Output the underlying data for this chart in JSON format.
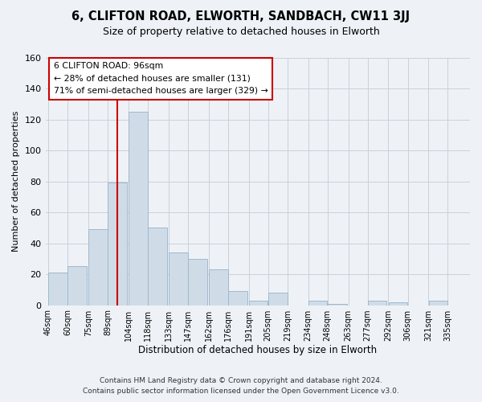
{
  "title": "6, CLIFTON ROAD, ELWORTH, SANDBACH, CW11 3JJ",
  "subtitle": "Size of property relative to detached houses in Elworth",
  "xlabel": "Distribution of detached houses by size in Elworth",
  "ylabel": "Number of detached properties",
  "bar_color": "#cfdce8",
  "bar_edge_color": "#a0b8cc",
  "bins_left": [
    46,
    60,
    75,
    89,
    104,
    118,
    133,
    147,
    162,
    176,
    191,
    205,
    219,
    234,
    248,
    263,
    277,
    292,
    306,
    321
  ],
  "bin_width": 14,
  "counts": [
    21,
    25,
    49,
    79,
    125,
    50,
    34,
    30,
    23,
    9,
    3,
    8,
    0,
    3,
    1,
    0,
    3,
    2,
    0,
    3
  ],
  "tick_labels": [
    "46sqm",
    "60sqm",
    "75sqm",
    "89sqm",
    "104sqm",
    "118sqm",
    "133sqm",
    "147sqm",
    "162sqm",
    "176sqm",
    "191sqm",
    "205sqm",
    "219sqm",
    "234sqm",
    "248sqm",
    "263sqm",
    "277sqm",
    "292sqm",
    "306sqm",
    "321sqm",
    "335sqm"
  ],
  "tick_positions": [
    46,
    60,
    75,
    89,
    104,
    118,
    133,
    147,
    162,
    176,
    191,
    205,
    219,
    234,
    248,
    263,
    277,
    292,
    306,
    321,
    335
  ],
  "reference_line_x": 96,
  "annotation_title": "6 CLIFTON ROAD: 96sqm",
  "annotation_line1": "← 28% of detached houses are smaller (131)",
  "annotation_line2": "71% of semi-detached houses are larger (329) →",
  "reference_line_color": "#cc0000",
  "annotation_box_edge": "#cc0000",
  "ylim": [
    0,
    160
  ],
  "yticks": [
    0,
    20,
    40,
    60,
    80,
    100,
    120,
    140,
    160
  ],
  "footer_line1": "Contains HM Land Registry data © Crown copyright and database right 2024.",
  "footer_line2": "Contains public sector information licensed under the Open Government Licence v3.0.",
  "background_color": "#eef2f7",
  "plot_bg_color": "#eef2f7",
  "grid_color": "#c8d0dc"
}
